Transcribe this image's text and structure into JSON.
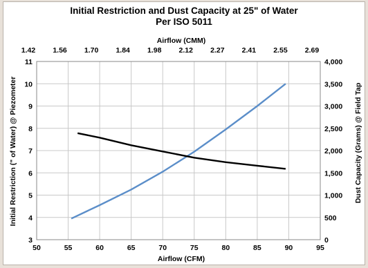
{
  "chart_data": {
    "type": "line",
    "title": "Initial Restriction and Dust Capacity at 25\" of Water",
    "subtitle": "Per ISO 5011",
    "xlabel": "Airflow (CFM)",
    "x2label": "Airflow (CMM)",
    "ylabel": "Initial Restriction (\" of Water) @ Piezometer",
    "y2label": "Dust Capacity (Grams) @ Field Tap",
    "xlim": [
      50,
      95
    ],
    "ylim": [
      3,
      11
    ],
    "y2lim": [
      0,
      4000
    ],
    "x_ticks": [
      "50",
      "55",
      "60",
      "65",
      "70",
      "75",
      "80",
      "85",
      "90",
      "95"
    ],
    "x2_ticks": [
      "1.42",
      "1.56",
      "1.70",
      "1.84",
      "1.98",
      "2.12",
      "2.27",
      "2.41",
      "2.55",
      "2.69"
    ],
    "y_ticks": [
      "3",
      "4",
      "5",
      "6",
      "7",
      "8",
      "9",
      "10",
      "11"
    ],
    "y2_ticks": [
      "0",
      "500",
      "1,000",
      "1,500",
      "2,000",
      "2,500",
      "3,000",
      "3,500",
      "4,000"
    ],
    "grid": true,
    "colors": {
      "restriction": "#5b8ec9",
      "dust": "#000000",
      "ylabel_color": "#5b8ec9",
      "grid": "#c8c8c8"
    },
    "series": [
      {
        "name": "Initial Restriction",
        "axis": "left",
        "x": [
          55.5,
          60,
          65,
          70,
          75,
          80,
          85,
          89.5
        ],
        "y": [
          3.95,
          4.55,
          5.25,
          6.05,
          6.95,
          7.95,
          9.0,
          10.0
        ]
      },
      {
        "name": "Dust Capacity",
        "axis": "right",
        "x": [
          56.5,
          60,
          65,
          70,
          75,
          80,
          85,
          89.5
        ],
        "y": [
          2390,
          2290,
          2120,
          1980,
          1840,
          1740,
          1660,
          1590
        ]
      }
    ]
  }
}
